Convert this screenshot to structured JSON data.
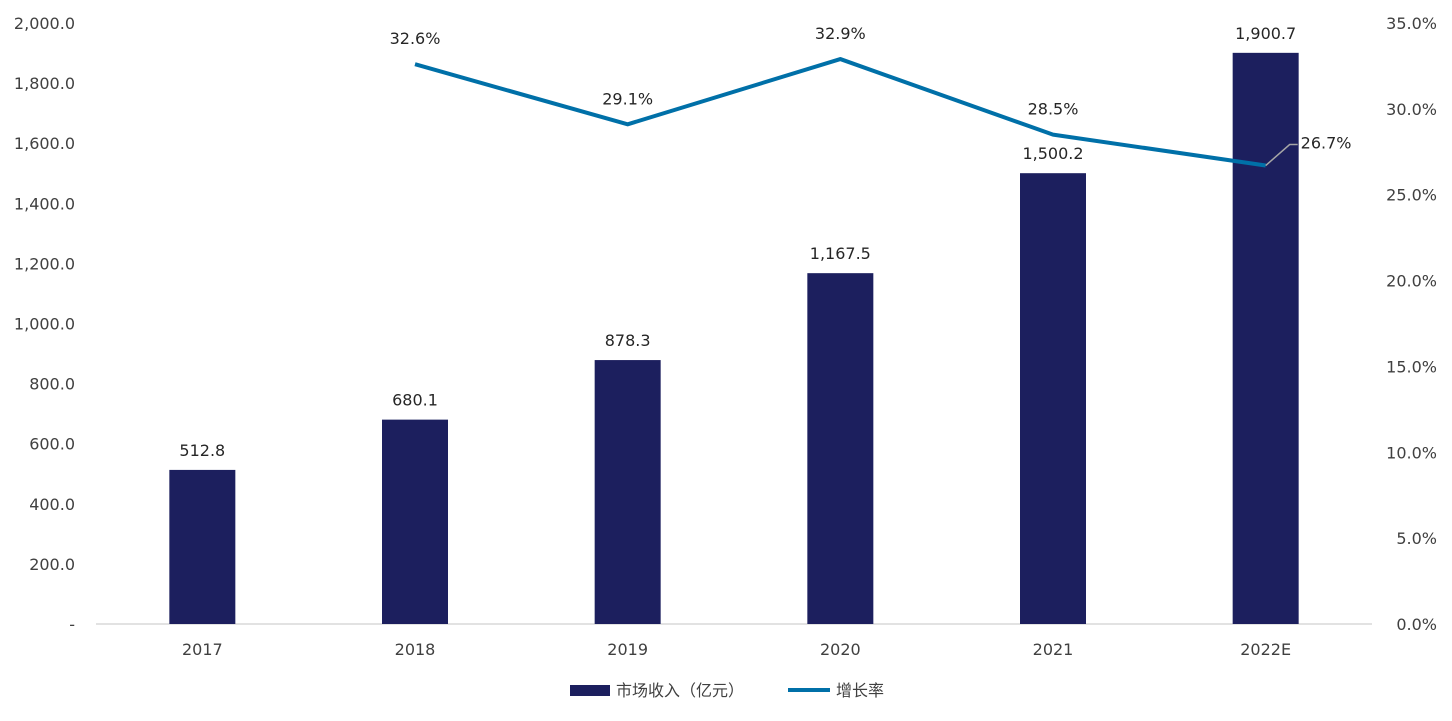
{
  "chart_data": {
    "type": "bar",
    "categories": [
      "2017",
      "2018",
      "2019",
      "2020",
      "2021",
      "2022E"
    ],
    "series": [
      {
        "name": "市场收入（亿元）",
        "type": "bar",
        "axis": "left",
        "values": [
          512.8,
          680.1,
          878.3,
          1167.5,
          1500.2,
          1900.7
        ],
        "labels": [
          "512.8",
          "680.1",
          "878.3",
          "1,167.5",
          "1,500.2",
          "1,900.7"
        ],
        "color": "#1c1f5e"
      },
      {
        "name": "增长率",
        "type": "line",
        "axis": "right",
        "values": [
          null,
          32.6,
          29.1,
          32.9,
          28.5,
          26.7
        ],
        "labels": [
          "",
          "32.6%",
          "29.1%",
          "32.9%",
          "28.5%",
          "26.7%"
        ],
        "color": "#0070a8"
      }
    ],
    "y_left": {
      "ylim": [
        0,
        2000
      ],
      "ticks": [
        0,
        200,
        400,
        600,
        800,
        1000,
        1200,
        1400,
        1600,
        1800,
        2000
      ],
      "tick_labels": [
        "-",
        "200.0",
        "400.0",
        "600.0",
        "800.0",
        "1,000.0",
        "1,200.0",
        "1,400.0",
        "1,600.0",
        "1,800.0",
        "2,000.0"
      ]
    },
    "y_right": {
      "ylim": [
        0,
        35
      ],
      "ticks": [
        0,
        5,
        10,
        15,
        20,
        25,
        30,
        35
      ],
      "tick_labels": [
        "0.0%",
        "5.0%",
        "10.0%",
        "15.0%",
        "20.0%",
        "25.0%",
        "30.0%",
        "35.0%"
      ]
    },
    "title": "",
    "xlabel": "",
    "ylabel": "",
    "grid": false,
    "legend": "bottom"
  }
}
